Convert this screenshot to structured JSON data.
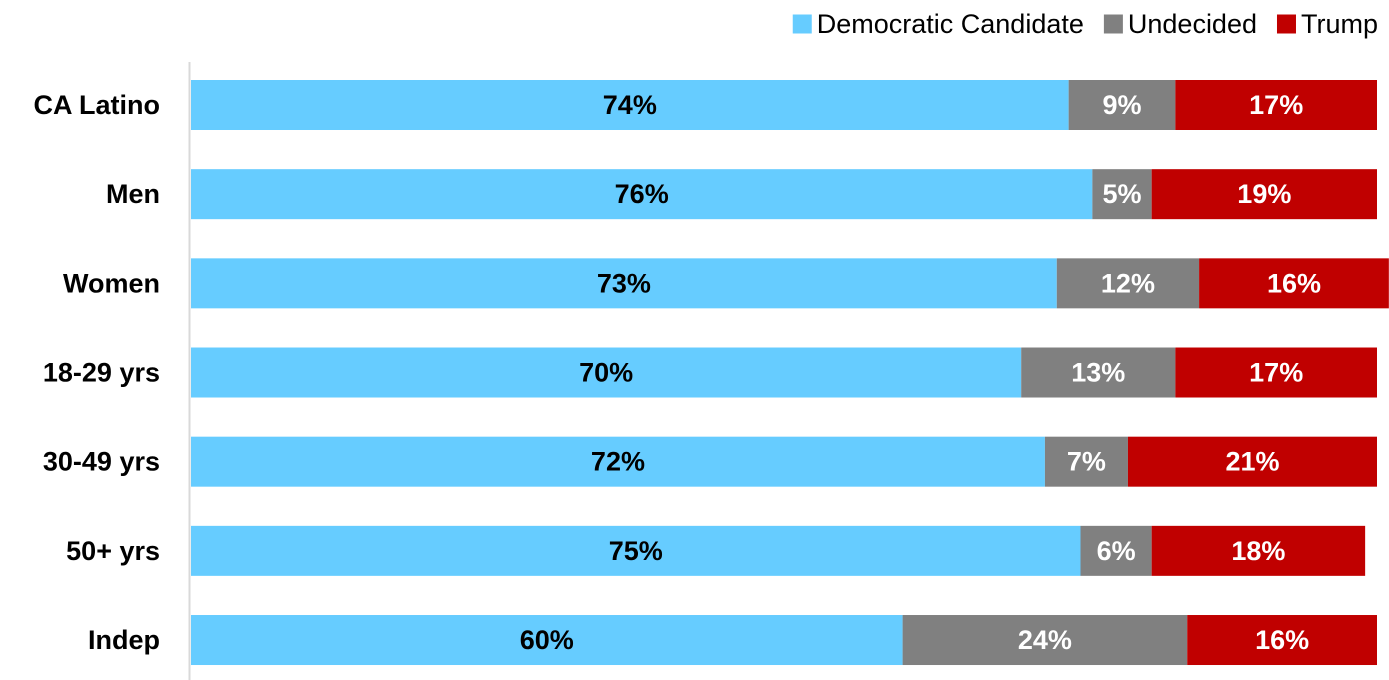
{
  "chart_data": {
    "type": "bar",
    "orientation": "horizontal",
    "stacked": true,
    "categories": [
      "CA Latino",
      "Men",
      "Women",
      "18-29 yrs",
      "30-49 yrs",
      "50+ yrs",
      "Indep"
    ],
    "series": [
      {
        "name": "Democratic Candidate",
        "color": "#66CCFF",
        "label_color": "#000000",
        "values": [
          74,
          76,
          73,
          70,
          72,
          75,
          60
        ],
        "labels": [
          "74%",
          "76%",
          "73%",
          "70%",
          "72%",
          "75%",
          "60%"
        ]
      },
      {
        "name": "Undecided",
        "color": "#808080",
        "label_color": "#ffffff",
        "values": [
          9,
          5,
          12,
          13,
          7,
          6,
          24
        ],
        "labels": [
          "9%",
          "5%",
          "12%",
          "13%",
          "7%",
          "6%",
          "24%"
        ]
      },
      {
        "name": "Trump",
        "color": "#C00000",
        "label_color": "#ffffff",
        "values": [
          17,
          19,
          16,
          17,
          21,
          18,
          16
        ],
        "labels": [
          "17%",
          "19%",
          "16%",
          "17%",
          "21%",
          "18%",
          "16%"
        ]
      }
    ],
    "xlim": [
      0,
      100
    ],
    "grid": false,
    "legend_position": "top-right",
    "axis_color": "#D9D9D9"
  }
}
